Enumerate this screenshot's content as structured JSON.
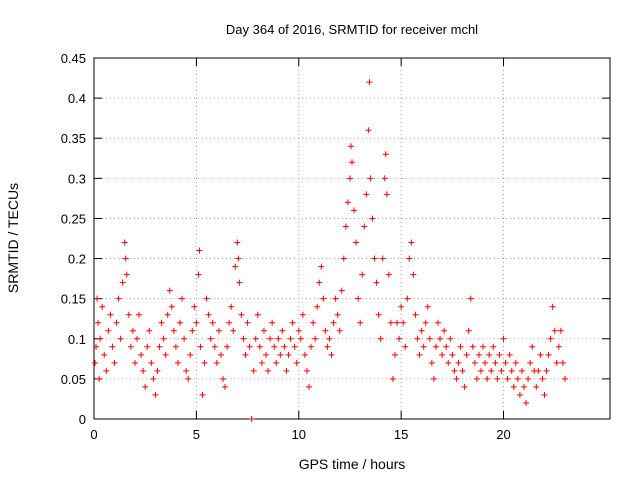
{
  "chart_data": {
    "type": "scatter",
    "title": "Day 364 of 2016, SRMTID for receiver mchl",
    "xlabel": "GPS time / hours",
    "ylabel": "SRMTID / TECUs",
    "xlim": [
      0,
      25.2
    ],
    "ylim": [
      0,
      0.45
    ],
    "xticks": [
      0,
      5,
      10,
      15,
      20
    ],
    "xtick_labels": [
      "0",
      "5",
      "10",
      "15",
      "20"
    ],
    "yticks": [
      0,
      0.05,
      0.1,
      0.15,
      0.2,
      0.25,
      0.3,
      0.35,
      0.4,
      0.45
    ],
    "ytick_labels": [
      "0",
      "0.05",
      "0.1",
      "0.15",
      "0.2",
      "0.25",
      "0.3",
      "0.35",
      "0.4",
      "0.45"
    ],
    "grid": true,
    "marker": "+",
    "color": "#ff0000",
    "series": [
      {
        "name": "SRMTID",
        "points": [
          [
            0.05,
            0.07
          ],
          [
            0.1,
            0.09
          ],
          [
            0.15,
            0.15
          ],
          [
            0.2,
            0.12
          ],
          [
            0.25,
            0.05
          ],
          [
            0.3,
            0.1
          ],
          [
            0.4,
            0.14
          ],
          [
            0.5,
            0.08
          ],
          [
            0.6,
            0.06
          ],
          [
            0.7,
            0.11
          ],
          [
            0.8,
            0.13
          ],
          [
            0.9,
            0.09
          ],
          [
            1.0,
            0.07
          ],
          [
            1.1,
            0.12
          ],
          [
            1.2,
            0.15
          ],
          [
            1.3,
            0.1
          ],
          [
            1.4,
            0.17
          ],
          [
            1.5,
            0.22
          ],
          [
            1.55,
            0.2
          ],
          [
            1.6,
            0.18
          ],
          [
            1.7,
            0.13
          ],
          [
            1.8,
            0.09
          ],
          [
            1.9,
            0.11
          ],
          [
            2.0,
            0.07
          ],
          [
            2.1,
            0.1
          ],
          [
            2.2,
            0.13
          ],
          [
            2.3,
            0.08
          ],
          [
            2.4,
            0.06
          ],
          [
            2.5,
            0.04
          ],
          [
            2.6,
            0.09
          ],
          [
            2.7,
            0.11
          ],
          [
            2.8,
            0.07
          ],
          [
            2.9,
            0.05
          ],
          [
            3.0,
            0.03
          ],
          [
            3.1,
            0.06
          ],
          [
            3.2,
            0.09
          ],
          [
            3.3,
            0.12
          ],
          [
            3.4,
            0.1
          ],
          [
            3.5,
            0.08
          ],
          [
            3.6,
            0.13
          ],
          [
            3.7,
            0.16
          ],
          [
            3.8,
            0.14
          ],
          [
            3.9,
            0.11
          ],
          [
            4.0,
            0.09
          ],
          [
            4.1,
            0.07
          ],
          [
            4.2,
            0.12
          ],
          [
            4.3,
            0.15
          ],
          [
            4.4,
            0.1
          ],
          [
            4.5,
            0.06
          ],
          [
            4.6,
            0.05
          ],
          [
            4.7,
            0.08
          ],
          [
            4.8,
            0.11
          ],
          [
            4.9,
            0.14
          ],
          [
            5.0,
            0.12
          ],
          [
            5.1,
            0.18
          ],
          [
            5.15,
            0.21
          ],
          [
            5.2,
            0.09
          ],
          [
            5.3,
            0.03
          ],
          [
            5.4,
            0.07
          ],
          [
            5.5,
            0.15
          ],
          [
            5.6,
            0.13
          ],
          [
            5.7,
            0.1
          ],
          [
            5.8,
            0.12
          ],
          [
            5.9,
            0.09
          ],
          [
            6.0,
            0.07
          ],
          [
            6.1,
            0.11
          ],
          [
            6.2,
            0.08
          ],
          [
            6.3,
            0.05
          ],
          [
            6.4,
            0.04
          ],
          [
            6.5,
            0.09
          ],
          [
            6.6,
            0.12
          ],
          [
            6.7,
            0.14
          ],
          [
            6.8,
            0.11
          ],
          [
            6.9,
            0.19
          ],
          [
            7.0,
            0.22
          ],
          [
            7.05,
            0.2
          ],
          [
            7.1,
            0.17
          ],
          [
            7.2,
            0.13
          ],
          [
            7.3,
            0.1
          ],
          [
            7.4,
            0.08
          ],
          [
            7.5,
            0.12
          ],
          [
            7.6,
            0.09
          ],
          [
            7.7,
            0.0
          ],
          [
            7.8,
            0.06
          ],
          [
            7.9,
            0.1
          ],
          [
            8.0,
            0.13
          ],
          [
            8.1,
            0.09
          ],
          [
            8.2,
            0.07
          ],
          [
            8.3,
            0.11
          ],
          [
            8.4,
            0.08
          ],
          [
            8.5,
            0.06
          ],
          [
            8.6,
            0.1
          ],
          [
            8.7,
            0.12
          ],
          [
            8.8,
            0.09
          ],
          [
            8.9,
            0.07
          ],
          [
            9.0,
            0.1
          ],
          [
            9.1,
            0.08
          ],
          [
            9.2,
            0.11
          ],
          [
            9.3,
            0.09
          ],
          [
            9.4,
            0.06
          ],
          [
            9.5,
            0.08
          ],
          [
            9.6,
            0.1
          ],
          [
            9.7,
            0.12
          ],
          [
            9.8,
            0.09
          ],
          [
            9.9,
            0.07
          ],
          [
            10.0,
            0.11
          ],
          [
            10.1,
            0.1
          ],
          [
            10.2,
            0.13
          ],
          [
            10.3,
            0.08
          ],
          [
            10.4,
            0.06
          ],
          [
            10.5,
            0.04
          ],
          [
            10.6,
            0.09
          ],
          [
            10.7,
            0.12
          ],
          [
            10.8,
            0.1
          ],
          [
            10.9,
            0.14
          ],
          [
            11.0,
            0.17
          ],
          [
            11.1,
            0.19
          ],
          [
            11.2,
            0.15
          ],
          [
            11.3,
            0.11
          ],
          [
            11.4,
            0.09
          ],
          [
            11.5,
            0.1
          ],
          [
            11.6,
            0.08
          ],
          [
            11.7,
            0.12
          ],
          [
            11.8,
            0.15
          ],
          [
            11.9,
            0.13
          ],
          [
            12.0,
            0.11
          ],
          [
            12.1,
            0.16
          ],
          [
            12.2,
            0.2
          ],
          [
            12.3,
            0.24
          ],
          [
            12.4,
            0.27
          ],
          [
            12.5,
            0.3
          ],
          [
            12.55,
            0.34
          ],
          [
            12.6,
            0.32
          ],
          [
            12.7,
            0.26
          ],
          [
            12.8,
            0.22
          ],
          [
            12.9,
            0.15
          ],
          [
            13.0,
            0.12
          ],
          [
            13.1,
            0.18
          ],
          [
            13.2,
            0.24
          ],
          [
            13.3,
            0.28
          ],
          [
            13.4,
            0.36
          ],
          [
            13.45,
            0.42
          ],
          [
            13.5,
            0.3
          ],
          [
            13.6,
            0.25
          ],
          [
            13.7,
            0.2
          ],
          [
            13.8,
            0.17
          ],
          [
            13.9,
            0.13
          ],
          [
            14.0,
            0.1
          ],
          [
            14.1,
            0.2
          ],
          [
            14.2,
            0.3
          ],
          [
            14.25,
            0.33
          ],
          [
            14.3,
            0.28
          ],
          [
            14.4,
            0.18
          ],
          [
            14.5,
            0.12
          ],
          [
            14.6,
            0.05
          ],
          [
            14.7,
            0.08
          ],
          [
            14.8,
            0.12
          ],
          [
            14.9,
            0.1
          ],
          [
            15.0,
            0.14
          ],
          [
            15.1,
            0.12
          ],
          [
            15.2,
            0.09
          ],
          [
            15.3,
            0.15
          ],
          [
            15.4,
            0.2
          ],
          [
            15.5,
            0.22
          ],
          [
            15.6,
            0.18
          ],
          [
            15.7,
            0.13
          ],
          [
            15.8,
            0.1
          ],
          [
            15.9,
            0.08
          ],
          [
            16.0,
            0.11
          ],
          [
            16.1,
            0.09
          ],
          [
            16.2,
            0.12
          ],
          [
            16.3,
            0.14
          ],
          [
            16.4,
            0.1
          ],
          [
            16.5,
            0.07
          ],
          [
            16.6,
            0.05
          ],
          [
            16.7,
            0.09
          ],
          [
            16.8,
            0.12
          ],
          [
            16.9,
            0.1
          ],
          [
            17.0,
            0.08
          ],
          [
            17.1,
            0.11
          ],
          [
            17.2,
            0.09
          ],
          [
            17.3,
            0.07
          ],
          [
            17.4,
            0.1
          ],
          [
            17.5,
            0.08
          ],
          [
            17.6,
            0.06
          ],
          [
            17.7,
            0.05
          ],
          [
            17.8,
            0.07
          ],
          [
            17.9,
            0.09
          ],
          [
            18.0,
            0.06
          ],
          [
            18.1,
            0.04
          ],
          [
            18.2,
            0.08
          ],
          [
            18.3,
            0.11
          ],
          [
            18.4,
            0.15
          ],
          [
            18.5,
            0.09
          ],
          [
            18.6,
            0.07
          ],
          [
            18.7,
            0.05
          ],
          [
            18.8,
            0.08
          ],
          [
            18.9,
            0.06
          ],
          [
            19.0,
            0.09
          ],
          [
            19.1,
            0.07
          ],
          [
            19.2,
            0.05
          ],
          [
            19.3,
            0.08
          ],
          [
            19.4,
            0.06
          ],
          [
            19.5,
            0.09
          ],
          [
            19.6,
            0.07
          ],
          [
            19.7,
            0.05
          ],
          [
            19.8,
            0.08
          ],
          [
            19.9,
            0.06
          ],
          [
            20.0,
            0.1
          ],
          [
            20.1,
            0.07
          ],
          [
            20.2,
            0.05
          ],
          [
            20.3,
            0.08
          ],
          [
            20.4,
            0.06
          ],
          [
            20.5,
            0.04
          ],
          [
            20.6,
            0.07
          ],
          [
            20.7,
            0.05
          ],
          [
            20.8,
            0.03
          ],
          [
            20.9,
            0.06
          ],
          [
            21.0,
            0.04
          ],
          [
            21.1,
            0.02
          ],
          [
            21.2,
            0.05
          ],
          [
            21.3,
            0.07
          ],
          [
            21.4,
            0.09
          ],
          [
            21.5,
            0.06
          ],
          [
            21.6,
            0.04
          ],
          [
            21.7,
            0.06
          ],
          [
            21.8,
            0.08
          ],
          [
            21.9,
            0.05
          ],
          [
            22.0,
            0.03
          ],
          [
            22.1,
            0.06
          ],
          [
            22.2,
            0.08
          ],
          [
            22.3,
            0.1
          ],
          [
            22.4,
            0.14
          ],
          [
            22.5,
            0.11
          ],
          [
            22.6,
            0.07
          ],
          [
            22.7,
            0.09
          ],
          [
            22.8,
            0.11
          ],
          [
            22.9,
            0.07
          ],
          [
            23.0,
            0.05
          ]
        ]
      }
    ]
  }
}
